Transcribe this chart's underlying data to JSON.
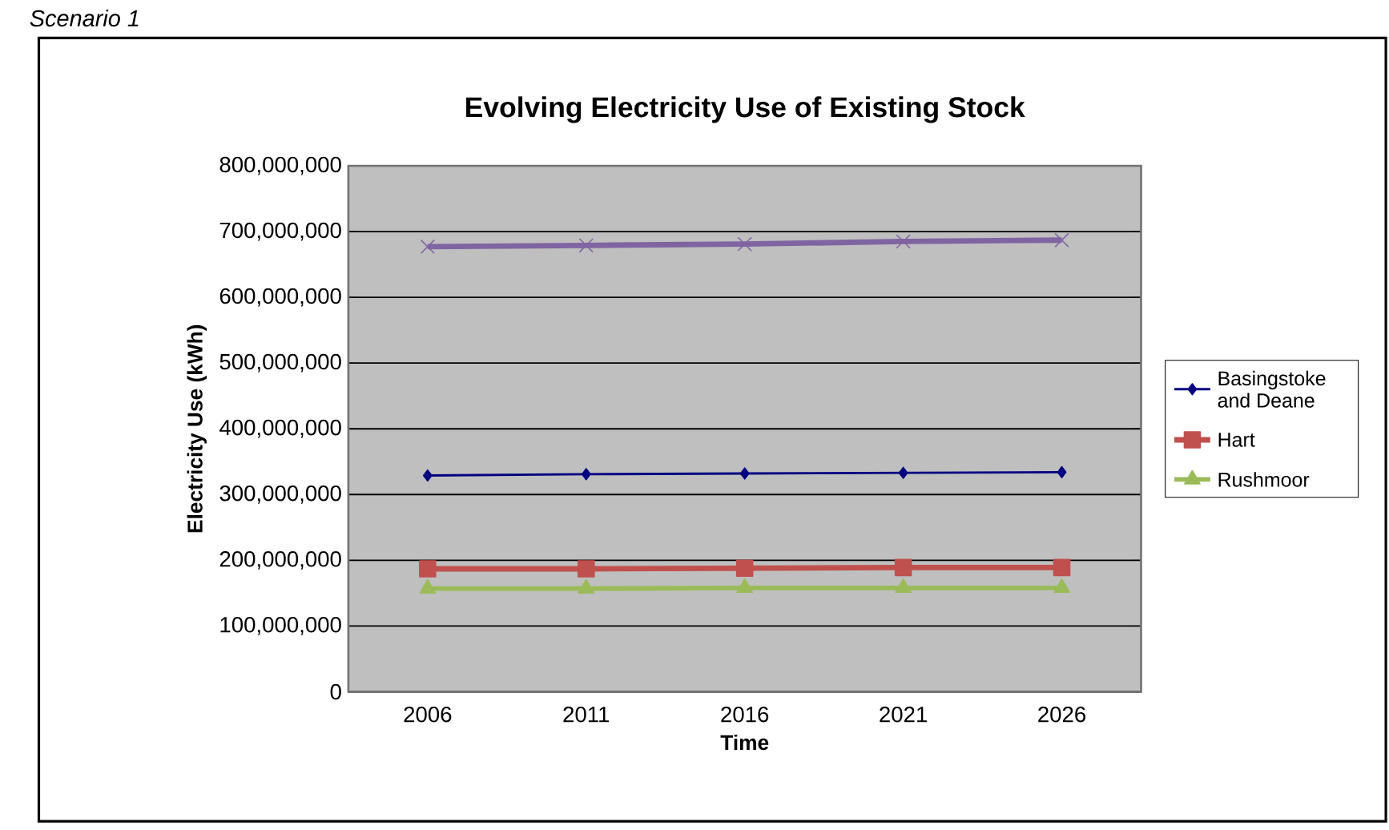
{
  "chart_data": {
    "type": "line",
    "title": "Evolving Electricity Use of Existing Stock",
    "xlabel": "Time",
    "ylabel": "Electricity Use (kWh)",
    "annotations": [
      "Scenario 1"
    ],
    "categories": [
      "2006",
      "2011",
      "2016",
      "2021",
      "2026"
    ],
    "series": [
      {
        "name": "Basingstoke and Deane",
        "color": "#000080",
        "marker": "diamond",
        "values": [
          329000000,
          331000000,
          332000000,
          333000000,
          334000000
        ]
      },
      {
        "name": "Hart",
        "color": "#c0504d",
        "marker": "square",
        "values": [
          187000000,
          187000000,
          188000000,
          189000000,
          189000000
        ]
      },
      {
        "name": "Rushmoor",
        "color": "#9bbb59",
        "marker": "triangle",
        "values": [
          157000000,
          157000000,
          158000000,
          158000000,
          158000000
        ]
      },
      {
        "color": "#8064a2",
        "marker": "cross",
        "values": [
          677000000,
          679000000,
          681000000,
          685000000,
          687000000
        ]
      }
    ],
    "ylim": [
      0,
      800000000
    ],
    "yticks": [
      {
        "value": 0,
        "label": "0"
      },
      {
        "value": 100000000,
        "label": "100,000,000"
      },
      {
        "value": 200000000,
        "label": "200,000,000"
      },
      {
        "value": 300000000,
        "label": "300,000,000"
      },
      {
        "value": 400000000,
        "label": "400,000,000"
      },
      {
        "value": 500000000,
        "label": "500,000,000"
      },
      {
        "value": 600000000,
        "label": "600,000,000"
      },
      {
        "value": 700000000,
        "label": "700,000,000"
      },
      {
        "value": 800000000,
        "label": "800,000,000"
      }
    ],
    "grid": "y",
    "legend": "right"
  }
}
